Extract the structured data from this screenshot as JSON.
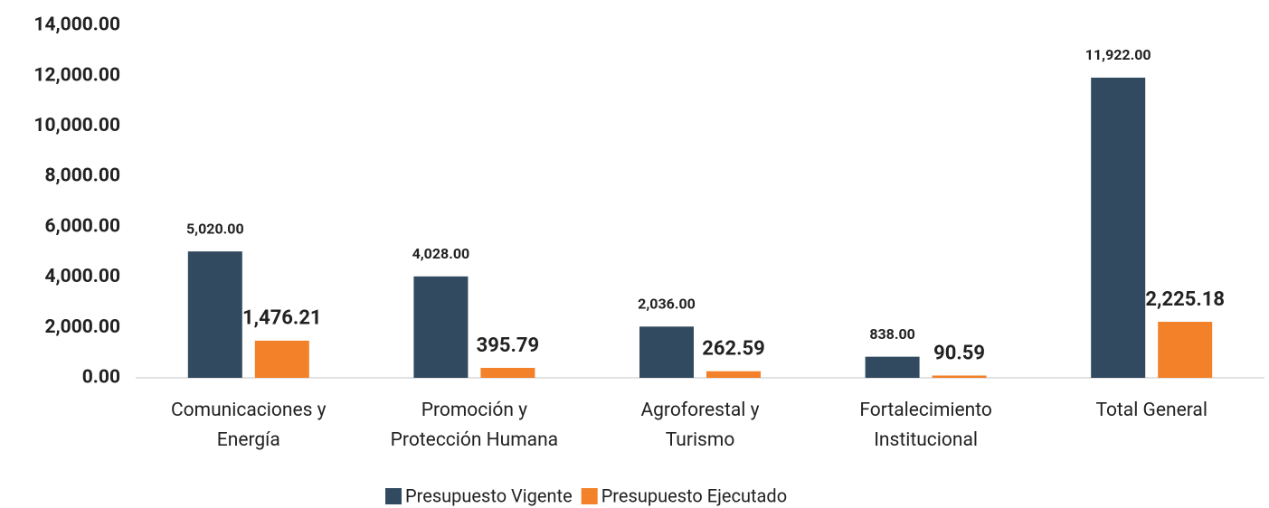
{
  "chart_data": {
    "type": "bar",
    "categories": [
      "Comunicaciones y\nEnergía",
      "Promoción y\nProtección Humana",
      "Agroforestal y\nTurismo",
      "Fortalecimiento\nInstitucional",
      "Total General"
    ],
    "series": [
      {
        "name": "Presupuesto Vigente",
        "color": "#324a5f",
        "values": [
          5020,
          4028,
          2036,
          838,
          11922
        ],
        "value_labels": [
          "5,020.00",
          "4,028.00",
          "2,036.00",
          "838.00",
          "11,922.00"
        ]
      },
      {
        "name": "Presupuesto Ejecutado",
        "color": "#f28129",
        "values": [
          1476.21,
          395.79,
          262.59,
          90.59,
          2225.18
        ],
        "value_labels": [
          "1,476.21",
          "395.79",
          "262.59",
          "90.59",
          "2,225.18"
        ]
      }
    ],
    "ylim": [
      0,
      14000
    ],
    "yticks": [
      {
        "value": 0,
        "label": "0.00"
      },
      {
        "value": 2000,
        "label": "2,000.00"
      },
      {
        "value": 4000,
        "label": "4,000.00"
      },
      {
        "value": 6000,
        "label": "6,000.00"
      },
      {
        "value": 8000,
        "label": "8,000.00"
      },
      {
        "value": 10000,
        "label": "10,000.00"
      },
      {
        "value": 12000,
        "label": "12,000.00"
      },
      {
        "value": 14000,
        "label": "14,000.00"
      }
    ],
    "legend": "bottom"
  }
}
